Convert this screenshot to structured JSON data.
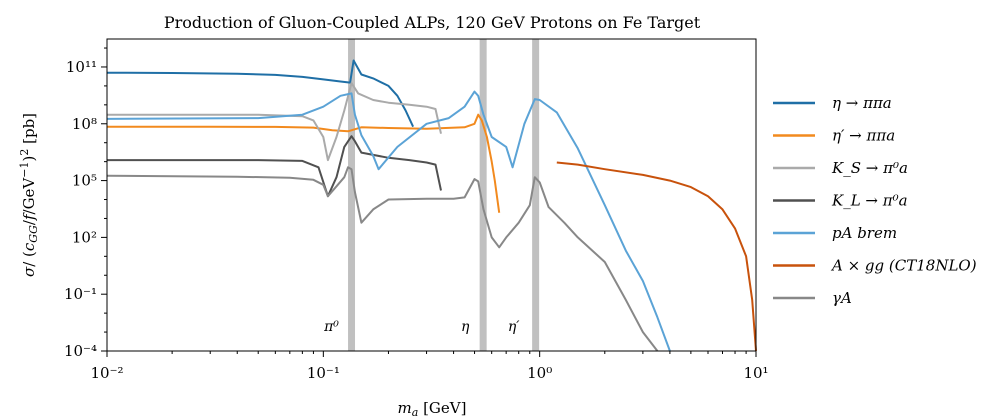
{
  "chart_data": {
    "type": "line",
    "title": "Production of Gluon-Coupled ALPs, 120 GeV Protons on Fe Target",
    "xlabel": "m_a [GeV]",
    "ylabel": "σ/ (c_GG/f/GeV⁻¹)² [pb]",
    "x_scale": "log",
    "y_scale": "log",
    "xlim": [
      0.01,
      10
    ],
    "ylim": [
      0.0001,
      3000000000000
    ],
    "x_ticks": [
      {
        "value": 0.01,
        "label": "10⁻²"
      },
      {
        "value": 0.1,
        "label": "10⁻¹"
      },
      {
        "value": 1,
        "label": "10⁰"
      },
      {
        "value": 10,
        "label": "10¹"
      }
    ],
    "y_ticks": [
      {
        "value": 0.0001,
        "label": "10⁻⁴"
      },
      {
        "value": 0.1,
        "label": "10⁻¹"
      },
      {
        "value": 100,
        "label": "10²"
      },
      {
        "value": 100000,
        "label": "10⁵"
      },
      {
        "value": 100000000,
        "label": "10⁸"
      },
      {
        "value": 100000000000,
        "label": "10¹¹"
      }
    ],
    "vertical_bands": [
      {
        "x": 0.135,
        "label": "π⁰",
        "color": "#c0c0c0"
      },
      {
        "x": 0.548,
        "label": "η",
        "color": "#c0c0c0"
      },
      {
        "x": 0.958,
        "label": "η′",
        "color": "#c0c0c0"
      }
    ],
    "legend_position": "right",
    "series": [
      {
        "name": "η → ππa",
        "color": "#1f6fa6",
        "points": [
          [
            0.01,
            50000000000.0
          ],
          [
            0.02,
            48000000000.0
          ],
          [
            0.04,
            44000000000.0
          ],
          [
            0.06,
            38000000000.0
          ],
          [
            0.08,
            30000000000.0
          ],
          [
            0.1,
            22000000000.0
          ],
          [
            0.12,
            17000000000.0
          ],
          [
            0.133,
            15000000000.0
          ],
          [
            0.138,
            220000000000.0
          ],
          [
            0.15,
            40000000000.0
          ],
          [
            0.17,
            25000000000.0
          ],
          [
            0.2,
            10000000000.0
          ],
          [
            0.22,
            3000000000.0
          ],
          [
            0.24,
            500000000.0
          ],
          [
            0.26,
            70000000.0
          ]
        ]
      },
      {
        "name": "η′ → ππa",
        "color": "#f28a1e",
        "points": [
          [
            0.01,
            70000000.0
          ],
          [
            0.03,
            70000000.0
          ],
          [
            0.06,
            68000000.0
          ],
          [
            0.09,
            63000000.0
          ],
          [
            0.11,
            45000000.0
          ],
          [
            0.13,
            40000000.0
          ],
          [
            0.15,
            65000000.0
          ],
          [
            0.2,
            60000000.0
          ],
          [
            0.3,
            55000000.0
          ],
          [
            0.45,
            65000000.0
          ],
          [
            0.5,
            100000000.0
          ],
          [
            0.52,
            300000000.0
          ],
          [
            0.54,
            150000000.0
          ],
          [
            0.57,
            20000000.0
          ],
          [
            0.6,
            1000000.0
          ],
          [
            0.62,
            100000.0
          ],
          [
            0.65,
            2000.0
          ]
        ]
      },
      {
        "name": "K_S → π⁰a",
        "color": "#aaaaaa",
        "points": [
          [
            0.01,
            300000000.0
          ],
          [
            0.05,
            300000000.0
          ],
          [
            0.08,
            250000000.0
          ],
          [
            0.09,
            150000000.0
          ],
          [
            0.1,
            20000000.0
          ],
          [
            0.105,
            1200000.0
          ],
          [
            0.115,
            20000000.0
          ],
          [
            0.125,
            500000000.0
          ],
          [
            0.135,
            14000000000.0
          ],
          [
            0.145,
            4000000000.0
          ],
          [
            0.17,
            1800000000.0
          ],
          [
            0.2,
            1300000000.0
          ],
          [
            0.25,
            1000000000.0
          ],
          [
            0.3,
            800000000.0
          ],
          [
            0.33,
            600000000.0
          ],
          [
            0.35,
            30000000.0
          ]
        ]
      },
      {
        "name": "K_L → π⁰a",
        "color": "#505050",
        "points": [
          [
            0.01,
            1200000.0
          ],
          [
            0.05,
            1200000.0
          ],
          [
            0.08,
            1100000.0
          ],
          [
            0.095,
            500000.0
          ],
          [
            0.105,
            15000.0
          ],
          [
            0.115,
            150000.0
          ],
          [
            0.125,
            6000000.0
          ],
          [
            0.135,
            22000000.0
          ],
          [
            0.14,
            12000000.0
          ],
          [
            0.15,
            3000000.0
          ],
          [
            0.2,
            1600000.0
          ],
          [
            0.25,
            1200000.0
          ],
          [
            0.3,
            900000.0
          ],
          [
            0.33,
            700000.0
          ],
          [
            0.35,
            30000.0
          ]
        ]
      },
      {
        "name": "pA brem",
        "color": "#5ba3d6",
        "points": [
          [
            0.01,
            180000000.0
          ],
          [
            0.05,
            200000000.0
          ],
          [
            0.08,
            300000000.0
          ],
          [
            0.1,
            800000000.0
          ],
          [
            0.12,
            3000000000.0
          ],
          [
            0.135,
            4000000000.0
          ],
          [
            0.14,
            300000000.0
          ],
          [
            0.15,
            25000000.0
          ],
          [
            0.17,
            2000000.0
          ],
          [
            0.18,
            400000.0
          ],
          [
            0.22,
            6000000.0
          ],
          [
            0.3,
            100000000.0
          ],
          [
            0.38,
            200000000.0
          ],
          [
            0.45,
            800000000.0
          ],
          [
            0.5,
            5000000000.0
          ],
          [
            0.52,
            3000000000.0
          ],
          [
            0.55,
            300000000.0
          ],
          [
            0.6,
            20000000.0
          ],
          [
            0.7,
            6000000.0
          ],
          [
            0.75,
            500000.0
          ],
          [
            0.85,
            100000000.0
          ],
          [
            0.95,
            2000000000.0
          ],
          [
            1.0,
            1800000000.0
          ],
          [
            1.2,
            400000000.0
          ],
          [
            1.5,
            5000000.0
          ],
          [
            2,
            5000.0
          ],
          [
            2.5,
            20
          ],
          [
            3,
            0.5
          ],
          [
            3.5,
            0.006
          ],
          [
            4,
            0.0001
          ]
        ]
      },
      {
        "name": "A × gg (CT18NLO)",
        "color": "#c8520c",
        "points": [
          [
            1.2,
            900000.0
          ],
          [
            1.5,
            700000.0
          ],
          [
            2,
            400000.0
          ],
          [
            3,
            200000.0
          ],
          [
            4,
            100000.0
          ],
          [
            5,
            45000.0
          ],
          [
            6,
            15000.0
          ],
          [
            7,
            3000.0
          ],
          [
            8,
            300
          ],
          [
            9,
            10
          ],
          [
            9.6,
            0.05
          ],
          [
            10,
            0.0001
          ]
        ]
      },
      {
        "name": "γA",
        "color": "#888888",
        "points": [
          [
            0.01,
            180000.0
          ],
          [
            0.04,
            160000.0
          ],
          [
            0.07,
            140000.0
          ],
          [
            0.09,
            110000.0
          ],
          [
            0.1,
            60000.0
          ],
          [
            0.105,
            15000.0
          ],
          [
            0.115,
            50000.0
          ],
          [
            0.125,
            150000.0
          ],
          [
            0.13,
            500000.0
          ],
          [
            0.135,
            400000.0
          ],
          [
            0.14,
            25000.0
          ],
          [
            0.15,
            600
          ],
          [
            0.17,
            3000.0
          ],
          [
            0.2,
            10000.0
          ],
          [
            0.3,
            11000.0
          ],
          [
            0.4,
            11000.0
          ],
          [
            0.45,
            13000.0
          ],
          [
            0.5,
            120000.0
          ],
          [
            0.52,
            90000.0
          ],
          [
            0.55,
            3000.0
          ],
          [
            0.6,
            100
          ],
          [
            0.65,
            30
          ],
          [
            0.7,
            100
          ],
          [
            0.8,
            600
          ],
          [
            0.9,
            5000.0
          ],
          [
            0.95,
            150000.0
          ],
          [
            1.0,
            80000.0
          ],
          [
            1.1,
            4000.0
          ],
          [
            1.3,
            600
          ],
          [
            1.5,
            100
          ],
          [
            2,
            5
          ],
          [
            2.5,
            0.05
          ],
          [
            3,
            0.001
          ],
          [
            3.5,
            0.0001
          ]
        ]
      }
    ]
  }
}
